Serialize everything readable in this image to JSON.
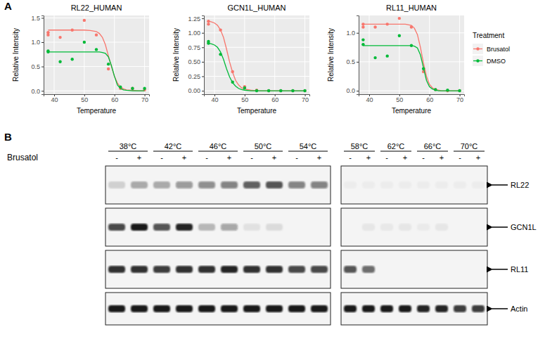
{
  "panels": [
    "A",
    "B"
  ],
  "chart_data": [
    {
      "type": "scatter",
      "title": "RL22_HUMAN",
      "x_label": "Temperature",
      "y_label": "Relative Intensity",
      "xlim": [
        36.5,
        71.5
      ],
      "xticks": [
        40,
        50,
        60,
        70
      ],
      "ylim": [
        -0.07,
        1.55
      ],
      "yticks": [
        {
          "value": 0,
          "label": "0.0"
        },
        0.5,
        {
          "value": 1,
          "label": "1.0"
        },
        1.5
      ],
      "grid": true,
      "x": [
        38,
        38,
        42,
        46,
        50,
        54,
        58,
        62,
        66,
        70
      ],
      "fit_x": [
        38,
        40,
        42,
        44,
        46,
        48,
        50,
        52,
        54,
        55,
        56,
        57,
        58,
        59,
        60,
        61,
        62,
        63,
        64,
        66,
        68,
        70
      ],
      "series": [
        {
          "name": "Brusatol",
          "color": "#F8766D",
          "values": [
            1.2,
            1.15,
            1.1,
            1.25,
            1.45,
            1.15,
            0.45,
            0.05,
            0.05,
            0.02
          ],
          "fit_values": [
            1.25,
            1.25,
            1.25,
            1.25,
            1.25,
            1.25,
            1.25,
            1.24,
            1.22,
            1.18,
            1.1,
            0.95,
            0.72,
            0.5,
            0.3,
            0.16,
            0.08,
            0.04,
            0.02,
            0.01,
            0,
            0
          ]
        },
        {
          "name": "DMSO",
          "color": "#00BA38",
          "values": [
            0.82,
            0.8,
            0.6,
            0.65,
            1.0,
            0.85,
            0.55,
            0.08,
            0.05,
            0.05
          ],
          "fit_values": [
            0.8,
            0.8,
            0.8,
            0.8,
            0.8,
            0.8,
            0.8,
            0.8,
            0.8,
            0.8,
            0.79,
            0.77,
            0.7,
            0.52,
            0.3,
            0.12,
            0.05,
            0.02,
            0.01,
            0,
            0,
            0
          ]
        }
      ]
    },
    {
      "type": "scatter",
      "title": "GCN1L_HUMAN",
      "x_label": "Temperature",
      "y_label": "Relative Intensity",
      "xlim": [
        36.5,
        71.5
      ],
      "xticks": [
        40,
        50,
        60,
        70
      ],
      "ylim": [
        -0.06,
        1.3
      ],
      "yticks": [
        {
          "value": 0,
          "label": "0.00"
        },
        0.25,
        {
          "value": 0.5,
          "label": "0.50"
        },
        0.75,
        {
          "value": 1,
          "label": "1.00"
        },
        1.25
      ],
      "grid": true,
      "x": [
        38,
        38,
        42,
        46,
        50,
        54,
        58,
        62,
        66,
        70
      ],
      "fit_x": [
        38,
        39,
        40,
        41,
        42,
        43,
        44,
        45,
        46,
        47,
        48,
        49,
        50,
        52,
        54,
        56,
        58,
        60,
        62,
        64,
        66,
        68,
        70
      ],
      "series": [
        {
          "name": "Brusatol",
          "color": "#F8766D",
          "values": [
            1.2,
            1.15,
            1.05,
            0.33,
            0.07,
            0.01,
            0,
            0,
            0,
            0
          ],
          "fit_values": [
            1.2,
            1.19,
            1.17,
            1.13,
            1.05,
            0.92,
            0.72,
            0.5,
            0.32,
            0.18,
            0.1,
            0.05,
            0.03,
            0.01,
            0,
            0,
            0,
            0,
            0,
            0,
            0,
            0,
            0
          ]
        },
        {
          "name": "DMSO",
          "color": "#00BA38",
          "values": [
            0.85,
            0.82,
            0.63,
            0.15,
            0.05,
            0,
            0,
            0,
            0,
            0
          ],
          "fit_values": [
            0.82,
            0.81,
            0.79,
            0.75,
            0.67,
            0.54,
            0.38,
            0.24,
            0.14,
            0.08,
            0.04,
            0.02,
            0.01,
            0,
            0,
            0,
            0,
            0,
            0,
            0,
            0,
            0,
            0
          ]
        }
      ]
    },
    {
      "type": "scatter",
      "title": "RL11_HUMAN",
      "x_label": "Temperature",
      "y_label": "Relative Intensity",
      "xlim": [
        36.5,
        71.5
      ],
      "xticks": [
        40,
        50,
        60,
        70
      ],
      "ylim": [
        -0.06,
        1.3
      ],
      "yticks": [
        {
          "value": 0,
          "label": "0.0"
        },
        0.5,
        {
          "value": 1,
          "label": "1.0"
        }
      ],
      "grid": true,
      "legend": "right",
      "legend_title": "Treatment",
      "x": [
        38,
        38,
        42,
        46,
        50,
        54,
        58,
        62,
        66,
        70
      ],
      "fit_x": [
        38,
        40,
        42,
        44,
        46,
        48,
        50,
        52,
        54,
        55,
        56,
        57,
        58,
        59,
        60,
        61,
        62,
        63,
        64,
        66,
        68,
        70
      ],
      "series": [
        {
          "name": "Brusatol",
          "color": "#F8766D",
          "values": [
            1.15,
            1.1,
            1.1,
            1.15,
            1.25,
            1.1,
            0.33,
            0.02,
            0,
            0
          ],
          "fit_values": [
            1.15,
            1.15,
            1.15,
            1.15,
            1.15,
            1.15,
            1.15,
            1.15,
            1.13,
            1.08,
            0.97,
            0.75,
            0.48,
            0.25,
            0.11,
            0.05,
            0.02,
            0.01,
            0,
            0,
            0,
            0
          ]
        },
        {
          "name": "DMSO",
          "color": "#00BA38",
          "values": [
            0.88,
            0.8,
            0.57,
            0.6,
            0.95,
            0.78,
            0.38,
            0.02,
            0.01,
            0
          ],
          "fit_values": [
            0.78,
            0.78,
            0.78,
            0.78,
            0.78,
            0.78,
            0.78,
            0.78,
            0.78,
            0.77,
            0.74,
            0.62,
            0.4,
            0.18,
            0.07,
            0.03,
            0.01,
            0,
            0,
            0,
            0,
            0
          ]
        }
      ]
    }
  ],
  "blot": {
    "treatment_label": "Brusatol",
    "signs": [
      "-",
      "+"
    ],
    "blocks": [
      {
        "temperatures": [
          "38°C",
          "42°C",
          "46°C",
          "50°C",
          "54°C"
        ]
      },
      {
        "temperatures": [
          "58°C",
          "62°C",
          "66°C",
          "70°C"
        ]
      }
    ],
    "rows": [
      {
        "label": "RL22",
        "intensity": [
          [
            0.15,
            0.3,
            0.3,
            0.4,
            0.45,
            0.5,
            0.65,
            0.7,
            0.5,
            0.5
          ],
          [
            0.03,
            0.03,
            0.03,
            0.03,
            0.03,
            0.03,
            0.03,
            0.03
          ]
        ]
      },
      {
        "label": "GCN1L",
        "intensity": [
          [
            0.75,
            0.95,
            0.7,
            0.9,
            0.25,
            0.35,
            0.08,
            0.1,
            0,
            0
          ],
          [
            0,
            0.06,
            0.05,
            0.06,
            0.04,
            0.06,
            0,
            0
          ]
        ]
      },
      {
        "label": "RL11",
        "intensity": [
          [
            0.85,
            0.85,
            0.8,
            0.85,
            0.85,
            0.9,
            0.85,
            0.85,
            0.75,
            0.75
          ],
          [
            0.7,
            0.6,
            0,
            0,
            0,
            0,
            0,
            0
          ]
        ]
      },
      {
        "label": "Actin",
        "intensity": [
          [
            0.95,
            0.95,
            0.95,
            0.95,
            0.95,
            0.95,
            0.95,
            0.95,
            0.95,
            0.95
          ],
          [
            0.95,
            0.95,
            0.95,
            0.95,
            0.9,
            0.9,
            0.8,
            0.8
          ]
        ]
      }
    ]
  }
}
